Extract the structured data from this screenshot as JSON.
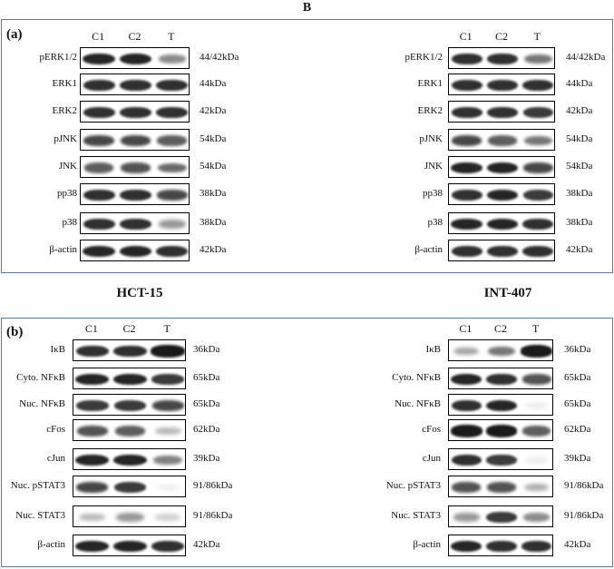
{
  "figure_letter": "B",
  "cell_lines": {
    "left": "HCT-15",
    "right": "INT-407"
  },
  "panel_a": {
    "label": "(a)",
    "lanes": [
      "C1",
      "C2",
      "T"
    ],
    "rows": [
      {
        "protein": "pERK1/2",
        "size": "44/42kDa"
      },
      {
        "protein": "ERK1",
        "size": "44kDa"
      },
      {
        "protein": "ERK2",
        "size": "42kDa"
      },
      {
        "protein": "pJNK",
        "size": "54kDa"
      },
      {
        "protein": "JNK",
        "size": "54kDa"
      },
      {
        "protein": "pp38",
        "size": "38kDa"
      },
      {
        "protein": "p38",
        "size": "38kDa"
      },
      {
        "protein": "β-actin",
        "size": "42kDa"
      }
    ]
  },
  "panel_b": {
    "label": "(b)",
    "lanes": [
      "C1",
      "C2",
      "T"
    ],
    "rows": [
      {
        "protein": "IκB",
        "size": "36kDa"
      },
      {
        "protein": "Cyto. NFκB",
        "size": "65kDa"
      },
      {
        "protein": "Nuc. NFκB",
        "size": "65kDa"
      },
      {
        "protein": "cFos",
        "size": "62kDa"
      },
      {
        "protein": "cJun",
        "size": "39kDa"
      },
      {
        "protein": "Nuc. pSTAT3",
        "size": "91/86kDa"
      },
      {
        "protein": "Nuc. STAT3",
        "size": "91/86kDa"
      },
      {
        "protein": "β-actin",
        "size": "42kDa"
      }
    ]
  },
  "colors": {
    "panel_border": "#5b7ab0",
    "band": "#1a1a1a"
  },
  "band_intensity": {
    "a_left": [
      [
        0.95,
        0.95,
        0.5
      ],
      [
        0.9,
        0.9,
        0.9
      ],
      [
        0.9,
        0.9,
        0.9
      ],
      [
        0.8,
        0.8,
        0.7
      ],
      [
        0.7,
        0.75,
        0.65
      ],
      [
        0.9,
        0.9,
        0.8
      ],
      [
        0.9,
        0.9,
        0.45
      ],
      [
        0.95,
        0.95,
        0.9
      ]
    ],
    "a_right": [
      [
        0.9,
        0.9,
        0.6
      ],
      [
        0.9,
        0.9,
        0.9
      ],
      [
        0.9,
        0.9,
        0.85
      ],
      [
        0.8,
        0.7,
        0.6
      ],
      [
        0.95,
        0.95,
        0.8
      ],
      [
        0.9,
        0.95,
        0.85
      ],
      [
        0.95,
        0.95,
        0.9
      ],
      [
        0.9,
        0.9,
        0.9
      ]
    ],
    "b_left": [
      [
        0.9,
        0.9,
        1.0
      ],
      [
        0.95,
        0.95,
        0.85
      ],
      [
        0.85,
        0.85,
        0.8
      ],
      [
        0.75,
        0.7,
        0.3
      ],
      [
        0.95,
        0.95,
        0.55
      ],
      [
        0.8,
        0.85,
        0.05
      ],
      [
        0.3,
        0.45,
        0.2
      ],
      [
        0.95,
        0.95,
        0.9
      ]
    ],
    "b_right": [
      [
        0.4,
        0.6,
        1.0
      ],
      [
        0.95,
        0.9,
        0.75
      ],
      [
        0.9,
        0.95,
        0.1
      ],
      [
        1.0,
        1.0,
        0.7
      ],
      [
        0.9,
        0.85,
        0.1
      ],
      [
        0.75,
        0.75,
        0.35
      ],
      [
        0.45,
        0.85,
        0.5
      ],
      [
        0.95,
        0.9,
        0.9
      ]
    ]
  }
}
